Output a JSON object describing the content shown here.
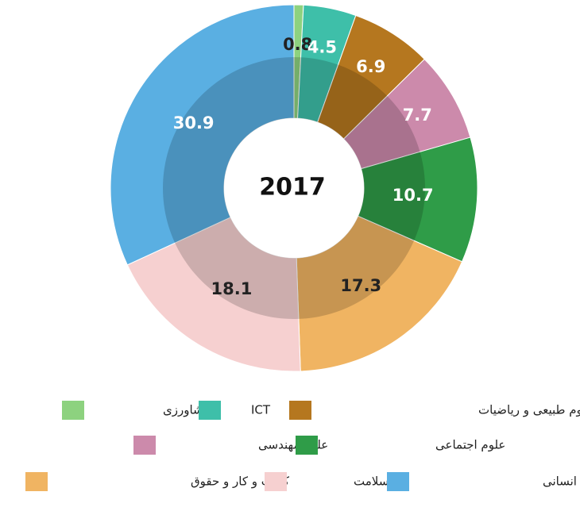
{
  "chart_data": {
    "type": "pie",
    "title": "2017",
    "categories": [
      "کشاورزی",
      "ICT",
      "علوم طبیعی و ریاضیات",
      "علوم مهندسی",
      "علوم اجتماعی",
      "کسب و کار و حقوق",
      "سلامت",
      "هنر و علوم انسانی"
    ],
    "values": [
      0.8,
      4.5,
      6.9,
      7.7,
      10.7,
      17.3,
      18.1,
      30.9
    ],
    "colors": [
      "#8dd27f",
      "#3ebfa9",
      "#b5771f",
      "#cc8aab",
      "#2f9c48",
      "#f0b462",
      "#f6d0d0",
      "#5aafe2"
    ]
  }
}
